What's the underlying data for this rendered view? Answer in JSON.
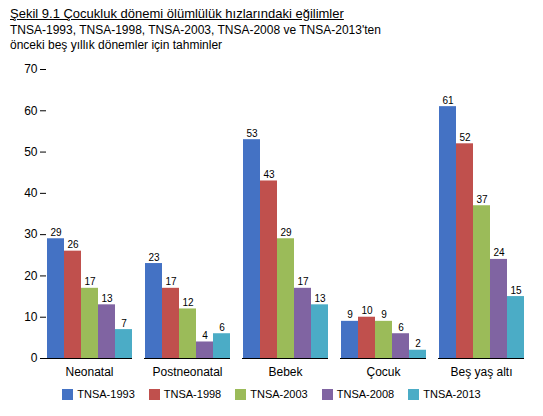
{
  "chart_data": {
    "type": "bar",
    "title": "Şekil 9.1 Çocukluk dönemi ölümlülük hızlarındaki eğilimler",
    "subtitle": [
      "TNSA-1993, TNSA-1998, TNSA-2003, TNSA-2008 ve TNSA-2013'ten",
      "önceki beş yıllık dönemler için tahminler"
    ],
    "categories": [
      "Neonatal",
      "Postneonatal",
      "Bebek",
      "Çocuk",
      "Beş yaş altı"
    ],
    "series": [
      {
        "name": "TNSA-1993",
        "color": "#4472C4",
        "values": [
          29,
          23,
          53,
          9,
          61
        ]
      },
      {
        "name": "TNSA-1998",
        "color": "#C0504D",
        "values": [
          26,
          17,
          43,
          10,
          52
        ]
      },
      {
        "name": "TNSA-2003",
        "color": "#9BBB59",
        "values": [
          17,
          12,
          29,
          9,
          37
        ]
      },
      {
        "name": "TNSA-2008",
        "color": "#8064A2",
        "values": [
          13,
          4,
          17,
          6,
          24
        ]
      },
      {
        "name": "TNSA-2013",
        "color": "#4BACC6",
        "values": [
          7,
          6,
          13,
          2,
          15
        ]
      }
    ],
    "ylim": [
      0,
      70
    ],
    "yticks": [
      0,
      10,
      20,
      30,
      40,
      50,
      60,
      70
    ],
    "grid": false,
    "legend": "bottom",
    "data_labels": true
  }
}
